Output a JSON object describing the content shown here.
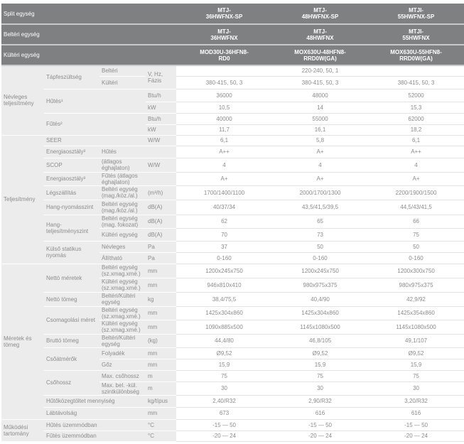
{
  "header": [
    {
      "label": "Split egység",
      "values": [
        "MTJ-\n36HWFNX-SP",
        "MTJ-\n48HWFNX-SP",
        "MTJI-\n55HWFNX-SP"
      ]
    },
    {
      "label": "Beltéri egység",
      "values": [
        "MTJ-\n36HWFNX",
        "MTJ-\n48HWFNX",
        "MTJI-\n55HWFNX"
      ]
    },
    {
      "label": "Kültéri egység",
      "values": [
        "MOD30U-36HFN8-\nRD0",
        "MOX630U-48HFN8-\nRRD0W(GA)",
        "MOX630U-55HFN8-\nRRD0W(GA)"
      ]
    }
  ],
  "rows": [
    {
      "group": "Névleges teljesítmény",
      "param": "Tápfeszültség",
      "sub": "Beltéri",
      "unit": "V, Hz, Fázis",
      "values": [
        "220-240, 50, 1"
      ]
    },
    {
      "sub": "Kültéri",
      "values": [
        "380-415, 50, 3",
        "380-415, 50, 3",
        "380-415, 50, 3"
      ]
    },
    {
      "param": "Hűtés¹",
      "unit": "Btu/h",
      "values": [
        "36000",
        "48000",
        "52000"
      ]
    },
    {
      "unit": "kW",
      "values": [
        "10,5",
        "14",
        "15,3"
      ]
    },
    {
      "param": "Fűtés²",
      "unit": "Btu/h",
      "values": [
        "40000",
        "55000",
        "62000"
      ]
    },
    {
      "unit": "kW",
      "values": [
        "11,7",
        "16,1",
        "18,2"
      ]
    },
    {
      "group": "Teljesítmény",
      "param": "SEER",
      "unit": "W/W",
      "values": [
        "6,1",
        "5,8",
        "6,1"
      ]
    },
    {
      "param": "Energiaosztály³",
      "sub": "Hűtés",
      "unit": "",
      "values": [
        "A++",
        "A+",
        "A++"
      ]
    },
    {
      "param": "SCOP",
      "sub": "(átlagos éghajlaton)",
      "unit": "W/W",
      "values": [
        "4",
        "4",
        "4"
      ]
    },
    {
      "param": "Energiaosztály³",
      "sub": "Fűtés (átlagos éghajlaton)",
      "unit": "",
      "values": [
        "A+",
        "A+",
        "A+"
      ]
    },
    {
      "param": "Légszállítás",
      "sub": "Beltéri egység (mag./köz./al.)",
      "unit": "(m³/h)",
      "values": [
        "1700/1400/1100",
        "2000/1700/1300",
        "2200/1900/1500"
      ]
    },
    {
      "param": "Hang-nyomásszint",
      "sub": "Beltéri egység (mag./köz./al.)",
      "unit": "dB(A)",
      "values": [
        "40/37/34",
        "43,5/41,5/39,5",
        "44,5/43/41,5"
      ]
    },
    {
      "param": "Hang-teljesítményszint",
      "sub": "Beltéri egység (mag. fokozat)",
      "unit": "dB(A)",
      "values": [
        "62",
        "65",
        "66"
      ]
    },
    {
      "sub": "Kültéri egység",
      "unit": "dB(A)",
      "values": [
        "70",
        "73",
        "75"
      ]
    },
    {
      "param": "Külső statikus nyomás",
      "sub": "Névleges",
      "unit": "Pa",
      "values": [
        "37",
        "50",
        "50"
      ]
    },
    {
      "sub": "Állítható",
      "unit": "Pa",
      "values": [
        "0-160",
        "0-160",
        "0-160"
      ]
    },
    {
      "group": "Méretek és tömeg",
      "param": "Nettó méretek",
      "sub": "Beltéri egység (sz.xmag.xmé.)",
      "unit": "mm",
      "values": [
        "1200x245x750",
        "1200x245x750",
        "1200x300x750"
      ]
    },
    {
      "sub": "Kültéri egység (sz.xmag.xmé.)",
      "unit": "mm",
      "values": [
        "946x810x410",
        "980x975x375",
        "980x975x375"
      ]
    },
    {
      "param": "Nettó tömeg",
      "sub": "Beltéri/Kültéri egység",
      "unit": "kg",
      "values": [
        "38,4/75,5",
        "40,4/90",
        "42,9/92"
      ]
    },
    {
      "param": "Csomagolási méret",
      "sub": "Beltéri egység (sz.xmag.xmé.)",
      "unit": "mm",
      "values": [
        "1425x304x860",
        "1425x304x860",
        "1425x354x860"
      ]
    },
    {
      "sub": "Kültéri egység (sz.xmag.xmé.)",
      "unit": "mm",
      "values": [
        "1090x885x500",
        "1145x1080x500",
        "1145x1080x500"
      ]
    },
    {
      "param": "Bruttó tömeg",
      "sub": "Beltéri/Kültéri egység",
      "unit": "(kg)",
      "values": [
        "44,4/80",
        "46,8/105",
        "49,1/107"
      ]
    },
    {
      "param": "Csőátmérők",
      "sub": "Folyadék",
      "unit": "mm",
      "values": [
        "Ø9,52",
        "Ø9,52",
        "Ø9,52"
      ]
    },
    {
      "sub": "Gőz",
      "unit": "mm",
      "values": [
        "15,9",
        "15,9",
        "15,9"
      ]
    },
    {
      "param": "Csőhossz",
      "sub": "Max. csőhossz",
      "unit": "m",
      "values": [
        "75",
        "75",
        "75"
      ]
    },
    {
      "sub": "Max. bel. -kül. szintkülönbség",
      "unit": "m",
      "values": [
        "30",
        "30",
        "30"
      ]
    },
    {
      "param": "Hűtőközegtöltet mennyiség",
      "unit": "kg/típus",
      "values": [
        "2,40/R32",
        "2,90/R32",
        "3,20/R32"
      ]
    },
    {
      "param": "Lábtávolság",
      "unit": "mm",
      "values": [
        "673",
        "616",
        "616"
      ]
    },
    {
      "group": "Működési tartomány",
      "param": "Hűtés üzemmódban",
      "unit": "°C",
      "values": [
        "-15 — 50",
        "-15 — 50",
        "-15 — 50"
      ]
    },
    {
      "param": "Fűtés üzemmódban",
      "unit": "°C",
      "values": [
        "-20 — 24",
        "-20 — 24",
        "-20 — 24"
      ]
    }
  ]
}
